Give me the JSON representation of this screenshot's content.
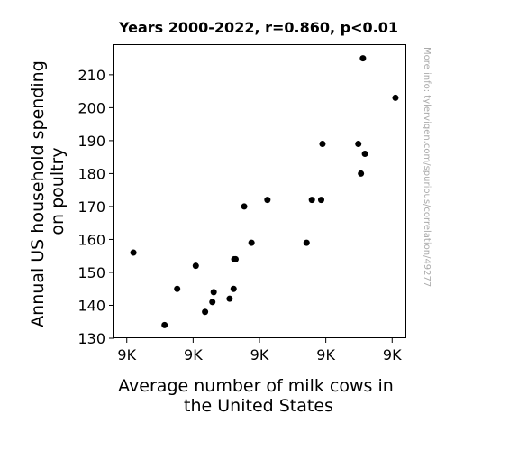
{
  "chart_data": {
    "type": "scatter",
    "title": "Years 2000-2022, r=0.860, p<0.01",
    "xlabel": [
      "Average number of milk cows in",
      "the United States"
    ],
    "ylabel": [
      "Annual US household spending",
      "on poultry"
    ],
    "credit": "More info: tylervigen.com/spurious/correlation/49277",
    "xlim": [
      9000,
      9220
    ],
    "ylim": [
      130,
      219
    ],
    "x_ticks": [
      {
        "value": 9010,
        "label": "9K"
      },
      {
        "value": 9060,
        "label": "9K"
      },
      {
        "value": 9110,
        "label": "9K"
      },
      {
        "value": 9160,
        "label": "9K"
      },
      {
        "value": 9210,
        "label": "9K"
      }
    ],
    "y_ticks": [
      130,
      140,
      150,
      160,
      170,
      180,
      190,
      200,
      210
    ],
    "point_color": "#000000",
    "points": [
      {
        "x": 9015.0,
        "y": 156
      },
      {
        "x": 9038.5,
        "y": 134
      },
      {
        "x": 9048.0,
        "y": 145
      },
      {
        "x": 9062.0,
        "y": 152
      },
      {
        "x": 9069.0,
        "y": 138
      },
      {
        "x": 9074.5,
        "y": 141
      },
      {
        "x": 9075.5,
        "y": 144
      },
      {
        "x": 9087.5,
        "y": 142
      },
      {
        "x": 9090.5,
        "y": 145
      },
      {
        "x": 9091.0,
        "y": 154
      },
      {
        "x": 9092.0,
        "y": 154
      },
      {
        "x": 9098.5,
        "y": 170
      },
      {
        "x": 9104.0,
        "y": 159
      },
      {
        "x": 9116.0,
        "y": 172
      },
      {
        "x": 9145.5,
        "y": 159
      },
      {
        "x": 9149.5,
        "y": 172
      },
      {
        "x": 9156.5,
        "y": 172
      },
      {
        "x": 9157.5,
        "y": 189
      },
      {
        "x": 9184.5,
        "y": 189
      },
      {
        "x": 9186.5,
        "y": 180
      },
      {
        "x": 9188.0,
        "y": 215
      },
      {
        "x": 9189.5,
        "y": 186
      },
      {
        "x": 9212.5,
        "y": 203
      }
    ]
  }
}
